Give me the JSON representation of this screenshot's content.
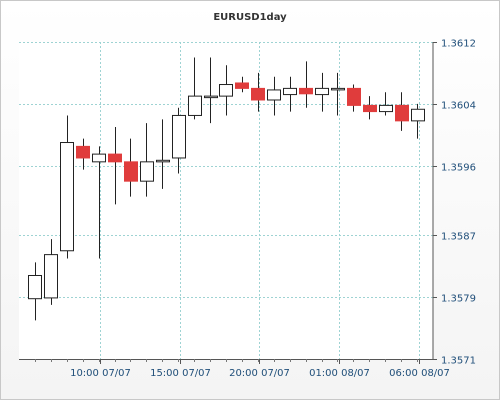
{
  "chart_data": {
    "type": "candlestick",
    "title": "EURUSD1day",
    "xlabel": "",
    "ylabel": "",
    "ylim": [
      1.3571,
      1.3612
    ],
    "y_ticks": [
      "1.3612",
      "1.3604",
      "1.3596",
      "1.3587",
      "1.3579",
      "1.3571"
    ],
    "x_ticks": [
      "10:00 07/07",
      "15:00 07/07",
      "20:00 07/07",
      "01:00 08/07",
      "06:00 08/07"
    ],
    "grid": true,
    "colors": {
      "up_body": "#ffffff",
      "down_body": "#e03c3c",
      "wick": "#222222",
      "grid": "#9ed3d3"
    },
    "candles": [
      {
        "open": 1.35788,
        "high": 1.35835,
        "low": 1.3576,
        "close": 1.35818
      },
      {
        "open": 1.35789,
        "high": 1.35865,
        "low": 1.3578,
        "close": 1.35845
      },
      {
        "open": 1.3585,
        "high": 1.36025,
        "low": 1.3584,
        "close": 1.3599
      },
      {
        "open": 1.35985,
        "high": 1.35995,
        "low": 1.35955,
        "close": 1.3597
      },
      {
        "open": 1.35965,
        "high": 1.35985,
        "low": 1.3584,
        "close": 1.35975
      },
      {
        "open": 1.35975,
        "high": 1.3601,
        "low": 1.3591,
        "close": 1.35965
      },
      {
        "open": 1.35965,
        "high": 1.35995,
        "low": 1.3592,
        "close": 1.3594
      },
      {
        "open": 1.3594,
        "high": 1.36015,
        "low": 1.3592,
        "close": 1.35965
      },
      {
        "open": 1.35965,
        "high": 1.3602,
        "low": 1.3593,
        "close": 1.35967
      },
      {
        "open": 1.3597,
        "high": 1.36035,
        "low": 1.3595,
        "close": 1.36025
      },
      {
        "open": 1.36025,
        "high": 1.361,
        "low": 1.3602,
        "close": 1.3605
      },
      {
        "open": 1.3605,
        "high": 1.361,
        "low": 1.36015,
        "close": 1.3605
      },
      {
        "open": 1.3605,
        "high": 1.3609,
        "low": 1.36025,
        "close": 1.36065
      },
      {
        "open": 1.36067,
        "high": 1.36075,
        "low": 1.36055,
        "close": 1.3606
      },
      {
        "open": 1.3606,
        "high": 1.3608,
        "low": 1.3603,
        "close": 1.36045
      },
      {
        "open": 1.36045,
        "high": 1.36075,
        "low": 1.36025,
        "close": 1.36058
      },
      {
        "open": 1.36052,
        "high": 1.36075,
        "low": 1.3603,
        "close": 1.3606
      },
      {
        "open": 1.3606,
        "high": 1.36095,
        "low": 1.36035,
        "close": 1.36053
      },
      {
        "open": 1.36052,
        "high": 1.3608,
        "low": 1.3603,
        "close": 1.3606
      },
      {
        "open": 1.3606,
        "high": 1.3608,
        "low": 1.36025,
        "close": 1.3606
      },
      {
        "open": 1.3606,
        "high": 1.36065,
        "low": 1.3603,
        "close": 1.36038
      },
      {
        "open": 1.36038,
        "high": 1.3605,
        "low": 1.3602,
        "close": 1.3603
      },
      {
        "open": 1.3603,
        "high": 1.36055,
        "low": 1.36025,
        "close": 1.36038
      },
      {
        "open": 1.36038,
        "high": 1.36055,
        "low": 1.36005,
        "close": 1.36018
      },
      {
        "open": 1.36018,
        "high": 1.3604,
        "low": 1.35995,
        "close": 1.36033
      }
    ]
  }
}
